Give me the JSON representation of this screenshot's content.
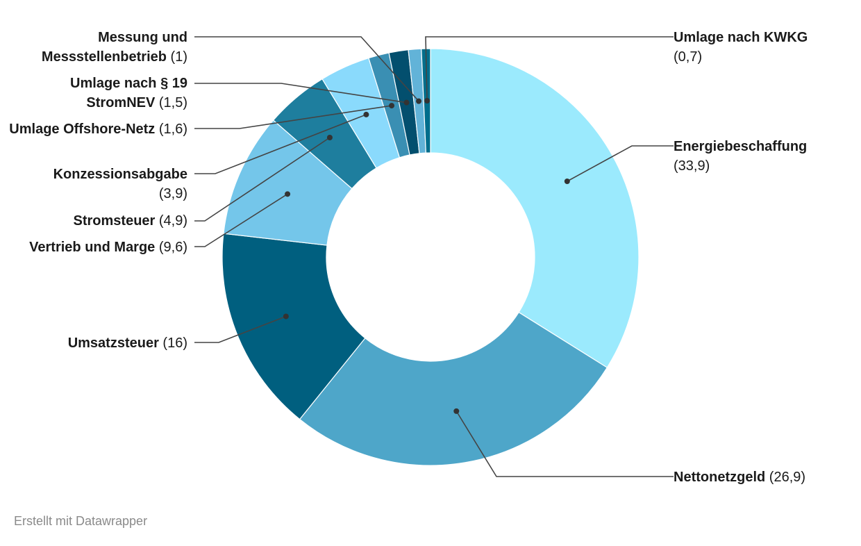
{
  "chart_data": {
    "type": "pie",
    "variant": "donut",
    "slices": [
      {
        "label": "Energiebeschaffung",
        "value_text": "(33,9)",
        "value": 33.9,
        "color": "#9beafd"
      },
      {
        "label": "Nettonetzgeld",
        "value_text": "(26,9)",
        "value": 26.9,
        "color": "#4ea6c9"
      },
      {
        "label": "Umsatzsteuer",
        "value_text": "(16)",
        "value": 16,
        "color": "#005f7f"
      },
      {
        "label": "Vertrieb und Marge",
        "value_text": "(9,6)",
        "value": 9.6,
        "color": "#74c6ea"
      },
      {
        "label": "Stromsteuer",
        "value_text": "(4,9)",
        "value": 4.9,
        "color": "#1e7e9e"
      },
      {
        "label": "Konzessionsabgabe",
        "value_text": "(3,9)",
        "value": 3.9,
        "color": "#8adafc"
      },
      {
        "label": "Umlage Offshore-Netz",
        "value_text": "(1,6)",
        "value": 1.6,
        "color": "#3a8fb3"
      },
      {
        "label": "Umlage nach § 19 StromNEV",
        "value_text": "(1,5)",
        "value": 1.5,
        "color": "#034f6e"
      },
      {
        "label": "Messung und Messstellenbetrieb",
        "value_text": "(1)",
        "value": 1,
        "color": "#62b3d8"
      },
      {
        "label": "Umlage nach KWKG",
        "value_text": "(0,7)",
        "value": 0.7,
        "color": "#006e8c"
      }
    ]
  },
  "footer": "Erstellt mit Datawrapper"
}
